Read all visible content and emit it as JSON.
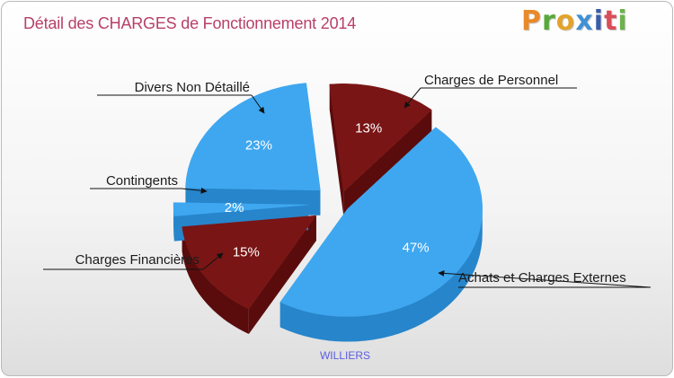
{
  "header": {
    "title": "Détail des CHARGES de Fonctionnement 2014",
    "logo_text": "Proxiti"
  },
  "chart_data": {
    "type": "pie",
    "title": "Détail des CHARGES de Fonctionnement 2014",
    "subtitle": "WILLIERS",
    "slices": [
      {
        "label": "Charges de Personnel",
        "percent": 13,
        "percent_label": "13%",
        "color": "#7a1515",
        "side_color": "#5a0c0c"
      },
      {
        "label": "Achats et Charges Externes",
        "percent": 47,
        "percent_label": "47%",
        "color": "#3ea7f0",
        "side_color": "#2785cb"
      },
      {
        "label": "Charges Financières",
        "percent": 15,
        "percent_label": "15%",
        "color": "#7a1515",
        "side_color": "#5a0c0c"
      },
      {
        "label": "Contingents",
        "percent": 2,
        "percent_label": "2%",
        "color": "#3ea7f0",
        "side_color": "#2785cb"
      },
      {
        "label": "Divers Non Détaillé",
        "percent": 23,
        "percent_label": "23%",
        "color": "#3ea7f0",
        "side_color": "#2785cb"
      }
    ]
  }
}
